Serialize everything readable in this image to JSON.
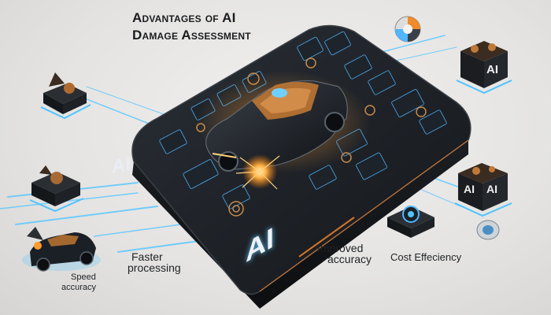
{
  "title": {
    "line1": "Advantages of AI",
    "line2": "Damage Assessment"
  },
  "platform_badges": {
    "left": "AI",
    "front": "AI"
  },
  "side_modules": {
    "right_top": "AI",
    "right_middle": [
      "AI",
      "AI"
    ]
  },
  "labels": {
    "faster_processing": [
      "Faster",
      "processing"
    ],
    "improved_accuracy": [
      "Improved",
      "accuracy"
    ],
    "cost_efficiency": "Cost Effeciency",
    "speed_accuracy": [
      "Speed",
      "accuracy"
    ]
  },
  "colors": {
    "accent_glow": "#4fc3ff",
    "spark": "#ff9a2e",
    "platform": "#15181c",
    "car_body": "#1b2026"
  }
}
